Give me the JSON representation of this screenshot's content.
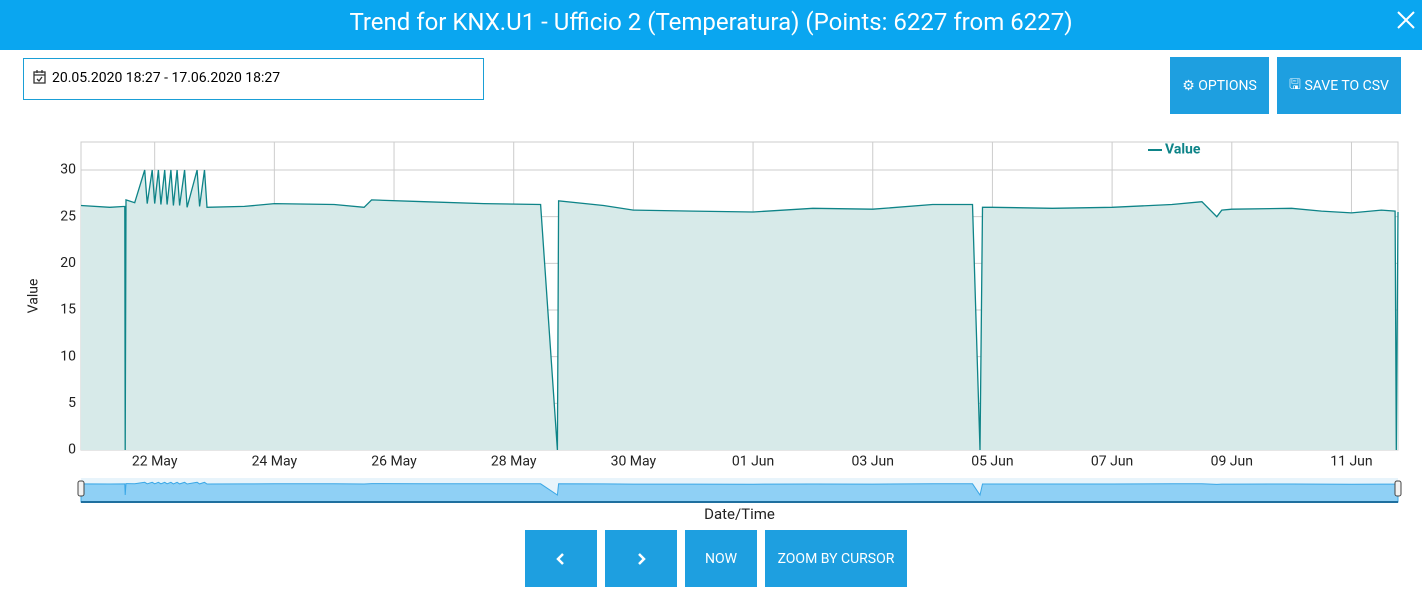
{
  "header": {
    "title": "Trend for KNX.U1 - Ufficio 2 (Temperatura) (Points: 6227 from 6227)"
  },
  "date_range": "20.05.2020 18:27 - 17.06.2020 18:27",
  "buttons": {
    "options": "OPTIONS",
    "save": "SAVE TO CSV",
    "now": "NOW",
    "zoom": "ZOOM BY CURSOR"
  },
  "chart_data": {
    "type": "area",
    "y_label": "Value",
    "x_label": "Date/Time",
    "grid": true,
    "legend": "top-right",
    "xlim": [
      "2020-05-20T18:27",
      "2020-06-11T18:40"
    ],
    "xticks": [
      {
        "value": "2020-05-22T00:00",
        "label": "22 May"
      },
      {
        "value": "2020-05-24T00:00",
        "label": "24 May"
      },
      {
        "value": "2020-05-26T00:00",
        "label": "26 May"
      },
      {
        "value": "2020-05-28T00:00",
        "label": "28 May"
      },
      {
        "value": "2020-05-30T00:00",
        "label": "30 May"
      },
      {
        "value": "2020-06-01T00:00",
        "label": "01 Jun"
      },
      {
        "value": "2020-06-03T00:00",
        "label": "03 Jun"
      },
      {
        "value": "2020-06-05T00:00",
        "label": "05 Jun"
      },
      {
        "value": "2020-06-07T00:00",
        "label": "07 Jun"
      },
      {
        "value": "2020-06-09T00:00",
        "label": "09 Jun"
      },
      {
        "value": "2020-06-11T00:00",
        "label": "11 Jun"
      }
    ],
    "ylim": [
      0,
      33
    ],
    "yticks": [
      0,
      5,
      10,
      15,
      20,
      25,
      30
    ],
    "x": [
      "2020-05-20T18:27",
      "2020-05-21T06:00",
      "2020-05-21T12:00",
      "2020-05-21T12:10",
      "2020-05-21T12:30",
      "2020-05-21T16:00",
      "2020-05-21T20:00",
      "2020-05-21T21:00",
      "2020-05-21T23:00",
      "2020-05-22T00:00",
      "2020-05-22T01:30",
      "2020-05-22T02:30",
      "2020-05-22T04:00",
      "2020-05-22T05:00",
      "2020-05-22T06:30",
      "2020-05-22T07:30",
      "2020-05-22T09:00",
      "2020-05-22T10:00",
      "2020-05-22T12:00",
      "2020-05-22T13:00",
      "2020-05-22T17:00",
      "2020-05-22T18:00",
      "2020-05-22T20:00",
      "2020-05-22T21:00",
      "2020-05-23T12:00",
      "2020-05-24T00:00",
      "2020-05-25T00:00",
      "2020-05-25T12:00",
      "2020-05-25T15:00",
      "2020-05-26T12:00",
      "2020-05-27T12:00",
      "2020-05-28T10:48",
      "2020-05-28T17:31",
      "2020-05-28T18:00",
      "2020-05-29T12:00",
      "2020-05-30T00:00",
      "2020-05-31T00:00",
      "2020-06-01T00:00",
      "2020-06-02T00:00",
      "2020-06-03T00:00",
      "2020-06-04T00:00",
      "2020-06-04T16:00",
      "2020-06-04T19:00",
      "2020-06-04T20:00",
      "2020-06-05T00:00",
      "2020-06-06T00:00",
      "2020-06-07T00:00",
      "2020-06-08T00:00",
      "2020-06-08T12:00",
      "2020-06-08T18:00",
      "2020-06-08T20:00",
      "2020-06-09T00:00",
      "2020-06-10T00:00",
      "2020-06-10T12:00",
      "2020-06-11T00:00",
      "2020-06-11T12:00",
      "2020-06-11T17:30",
      "2020-06-11T18:00",
      "2020-06-11T18:40"
    ],
    "series": [
      {
        "name": "Value",
        "color": "#0e8488",
        "values": [
          26.2,
          26.0,
          26.1,
          0,
          26.8,
          26.5,
          30,
          26.4,
          30,
          26.4,
          30,
          26.3,
          30,
          26.3,
          30,
          26.2,
          30,
          26.2,
          30,
          26.0,
          30,
          26.1,
          30,
          26.0,
          26.1,
          26.4,
          26.3,
          26.0,
          26.8,
          26.6,
          26.4,
          26.3,
          0,
          26.7,
          26.2,
          25.7,
          25.6,
          25.5,
          25.9,
          25.8,
          26.3,
          26.3,
          0,
          26.0,
          26.0,
          25.9,
          26.0,
          26.3,
          26.6,
          25.0,
          25.7,
          25.8,
          25.9,
          25.6,
          25.4,
          25.7,
          25.6,
          0,
          25.5
        ]
      }
    ]
  }
}
